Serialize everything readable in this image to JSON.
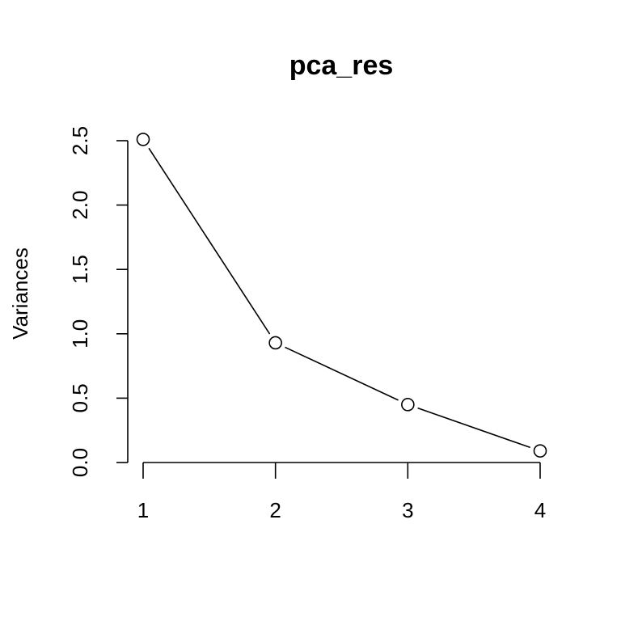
{
  "chart_data": {
    "type": "line",
    "title": "pca_res",
    "xlabel": "",
    "ylabel": "Variances",
    "x": [
      1,
      2,
      3,
      4
    ],
    "series": [
      {
        "values": [
          2.51,
          0.93,
          0.45,
          0.09
        ]
      }
    ],
    "xticks": [
      "1",
      "2",
      "3",
      "4"
    ],
    "yticks": [
      "0.0",
      "0.5",
      "1.0",
      "1.5",
      "2.0",
      "2.5"
    ],
    "ylim": [
      0,
      2.5
    ],
    "grid": false,
    "markers": "open-circle"
  }
}
